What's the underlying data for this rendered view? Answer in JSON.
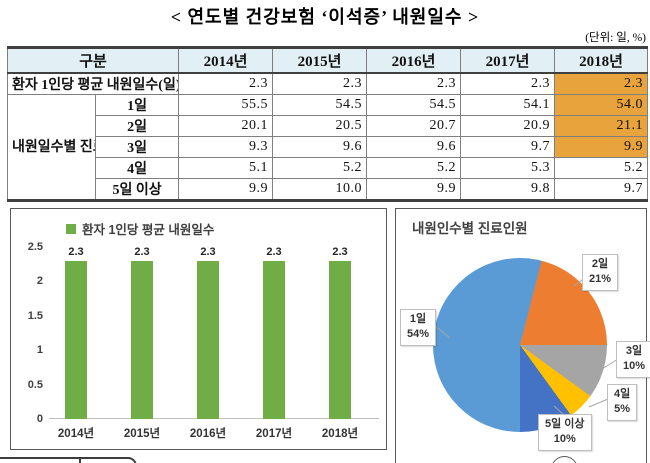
{
  "title": "< 연도별 건강보험 ‘이석증’ 내원일수 >",
  "unit_note": "(단위: 일, %)",
  "table": {
    "col_group_header": "구분",
    "year_headers": [
      "2014년",
      "2015년",
      "2016년",
      "2017년",
      "2018년"
    ],
    "avg_row": {
      "label": "환자 1인당 평균 내원일수(일)",
      "values": [
        "2.3",
        "2.3",
        "2.3",
        "2.3",
        "2.3"
      ],
      "highlight_2018": true
    },
    "group_label": "내원일수별\n진료인원\n(%)",
    "rows": [
      {
        "label": "1일",
        "values": [
          "55.5",
          "54.5",
          "54.5",
          "54.1",
          "54.0"
        ],
        "highlight_2018": true
      },
      {
        "label": "2일",
        "values": [
          "20.1",
          "20.5",
          "20.7",
          "20.9",
          "21.1"
        ],
        "highlight_2018": true
      },
      {
        "label": "3일",
        "values": [
          "9.3",
          "9.6",
          "9.6",
          "9.7",
          "9.9"
        ],
        "highlight_2018": true
      },
      {
        "label": "4일",
        "values": [
          "5.1",
          "5.2",
          "5.2",
          "5.3",
          "5.2"
        ],
        "highlight_2018": false
      },
      {
        "label": "5일 이상",
        "values": [
          "9.9",
          "10.0",
          "9.9",
          "9.8",
          "9.7"
        ],
        "highlight_2018": false
      }
    ],
    "highlight_color": "#E8A33D",
    "header_bg": "#E2F0F5"
  },
  "chart_data": [
    {
      "type": "bar",
      "legend": "환자 1인당 평균 내원일수",
      "categories": [
        "2014년",
        "2015년",
        "2016년",
        "2017년",
        "2018년"
      ],
      "values": [
        2.3,
        2.3,
        2.3,
        2.3,
        2.3
      ],
      "value_labels": [
        "2.3",
        "2.3",
        "2.3",
        "2.3",
        "2.3"
      ],
      "ylim": [
        0,
        2.5
      ],
      "ytick_labels": [
        "0",
        "0.5",
        "1",
        "1.5",
        "2",
        "2.5"
      ],
      "bar_color": "#70AD47",
      "gridlines": false,
      "legend_position": "top"
    },
    {
      "type": "pie",
      "title": "내원인수별 진료인원",
      "slices": [
        {
          "label": "1일",
          "pct": 54,
          "pct_label": "54%",
          "color": "#5B9BD5"
        },
        {
          "label": "2일",
          "pct": 21,
          "pct_label": "21%",
          "color": "#ED7D31"
        },
        {
          "label": "3일",
          "pct": 10,
          "pct_label": "10%",
          "color": "#A5A5A5"
        },
        {
          "label": "4일",
          "pct": 5,
          "pct_label": "5%",
          "color": "#FFC000"
        },
        {
          "label": "5일 이상",
          "pct": 10,
          "pct_label": "10%",
          "color": "#4472C4"
        }
      ],
      "clockwise_order": [
        1,
        2,
        3,
        4,
        0
      ],
      "rotation_deg": 14.4
    }
  ]
}
